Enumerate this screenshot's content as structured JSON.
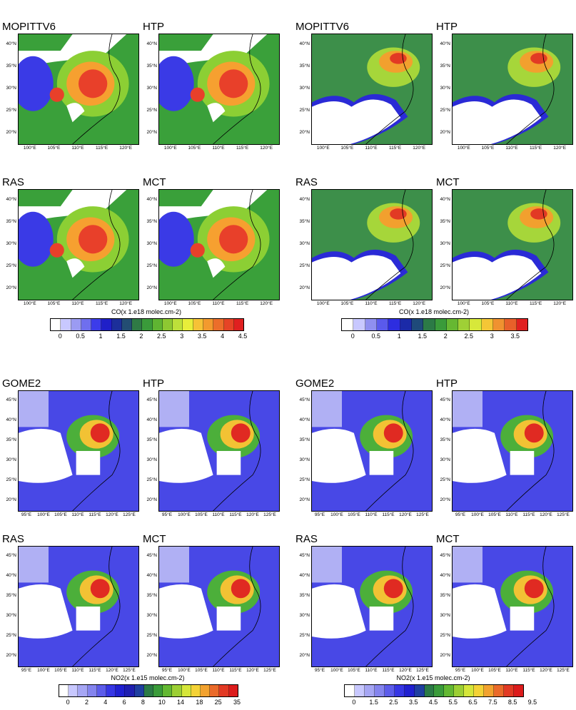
{
  "figure": {
    "colorbars": [
      {
        "title": "CO(x 1.e18 molec.cm-2)",
        "labels": [
          "0",
          "0.5",
          "1",
          "1.5",
          "2",
          "2.5",
          "3",
          "3.5",
          "4",
          "4.5"
        ],
        "colors": [
          "#ffffff",
          "#c8c8ff",
          "#9b9bf2",
          "#6f6fee",
          "#3c3cea",
          "#1f1fc8",
          "#1c2f9a",
          "#234d73",
          "#2f7a45",
          "#3a9b3a",
          "#5fb432",
          "#8dc832",
          "#bde03a",
          "#e8ee3a",
          "#f6c236",
          "#f39a2e",
          "#ec6e2a",
          "#e64426",
          "#e02020"
        ]
      },
      {
        "title": "CO(x 1.e18 molec.cm-2)",
        "labels": [
          "0",
          "0.5",
          "1",
          "1.5",
          "2",
          "2.5",
          "3",
          "3.5"
        ],
        "colors": [
          "#ffffff",
          "#c8c8ff",
          "#8f8ff0",
          "#5a5aec",
          "#2d2de0",
          "#1b2aa8",
          "#1f4a7a",
          "#2c7a46",
          "#3a9b3a",
          "#66b832",
          "#9fd036",
          "#d7e83a",
          "#f4c636",
          "#f09230",
          "#e8602a",
          "#e02020"
        ]
      },
      {
        "title": "NO2(x 1.e15 molec.cm-2)",
        "labels": [
          "0",
          "2",
          "4",
          "6",
          "8",
          "10",
          "14",
          "18",
          "25",
          "35"
        ],
        "colors": [
          "#ffffff",
          "#c8c8ff",
          "#a6a6f4",
          "#8484ee",
          "#5c5cea",
          "#3636e4",
          "#2020d0",
          "#1f1fb0",
          "#1f3fa0",
          "#2b7a46",
          "#3a9b3a",
          "#63b832",
          "#9ccf34",
          "#d5e63a",
          "#f4d236",
          "#f2a22f",
          "#ea6a2a",
          "#e23a24",
          "#dc1c1c"
        ]
      },
      {
        "title": "NO2(x 1.e15 molec.cm-2)",
        "labels": [
          "0",
          "1.5",
          "2.5",
          "3.5",
          "4.5",
          "5.5",
          "6.5",
          "7.5",
          "8.5",
          "9.5"
        ],
        "colors": [
          "#ffffff",
          "#c8c8ff",
          "#a6a6f4",
          "#8484ee",
          "#5c5cea",
          "#3636e4",
          "#2020d0",
          "#1f3fa0",
          "#2b7a46",
          "#3a9b3a",
          "#63b832",
          "#9ccf34",
          "#d5e63a",
          "#f4d236",
          "#f2a22f",
          "#ea6a2a",
          "#e23a24",
          "#dc1c1c"
        ]
      }
    ],
    "co_x_ticks": [
      "100°E",
      "105°E",
      "110°E",
      "115°E",
      "120°E"
    ],
    "co_y_ticks": [
      "40°N",
      "35°N",
      "30°N",
      "25°N",
      "20°N"
    ],
    "no2_x_ticks": [
      "95°E",
      "100°E",
      "105°E",
      "110°E",
      "115°E",
      "120°E",
      "125°E"
    ],
    "no2_y_ticks": [
      "45°N",
      "40°N",
      "35°N",
      "30°N",
      "25°N",
      "20°N"
    ],
    "panels": [
      {
        "title": "MOPITTV6"
      },
      {
        "title": "HTP"
      },
      {
        "title": "MOPITTV6"
      },
      {
        "title": "HTP"
      },
      {
        "title": "RAS"
      },
      {
        "title": "MCT"
      },
      {
        "title": "RAS"
      },
      {
        "title": "MCT"
      },
      {
        "title": "GOME2"
      },
      {
        "title": "HTP"
      },
      {
        "title": "GOME2"
      },
      {
        "title": "HTP"
      },
      {
        "title": "RAS"
      },
      {
        "title": "MCT"
      },
      {
        "title": "RAS"
      },
      {
        "title": "MCT"
      }
    ]
  }
}
